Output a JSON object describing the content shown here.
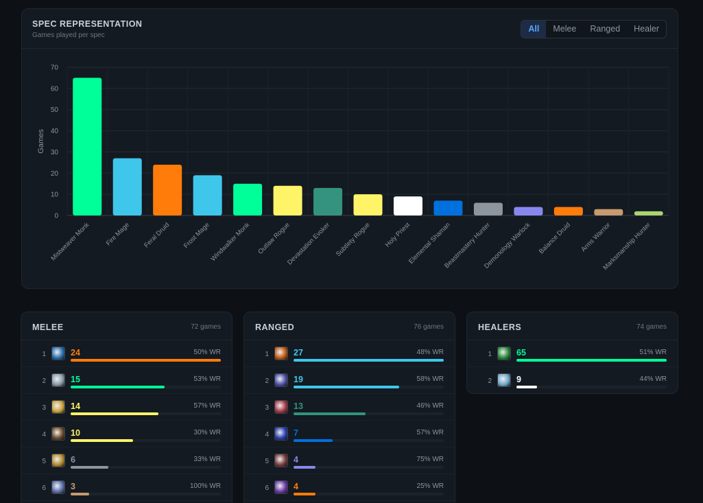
{
  "header": {
    "title": "SPEC REPRESENTATION",
    "subtitle": "Games played per spec",
    "filters": [
      "All",
      "Melee",
      "Ranged",
      "Healer"
    ],
    "active_filter": "All"
  },
  "chart_data": {
    "type": "bar",
    "title": "SPEC REPRESENTATION",
    "subtitle": "Games played per spec",
    "xlabel": "",
    "ylabel": "Games",
    "ylim": [
      0,
      70
    ],
    "yticks": [
      0,
      10,
      20,
      30,
      40,
      50,
      60,
      70
    ],
    "grid": true,
    "categories": [
      "Mistweaver Monk",
      "Fire Mage",
      "Feral Druid",
      "Frost Mage",
      "Windwalker Monk",
      "Outlaw Rogue",
      "Devastation Evoker",
      "Subtlety Rogue",
      "Holy Priest",
      "Elemental Shaman",
      "Beastmastery Hunter",
      "Demonology Warlock",
      "Balance Druid",
      "Arms Warrior",
      "Marksmanship Hunter"
    ],
    "values": [
      65,
      27,
      24,
      19,
      15,
      14,
      13,
      10,
      9,
      7,
      6,
      4,
      4,
      3,
      2
    ],
    "colors": [
      "#00ff98",
      "#3fc7eb",
      "#ff7c0a",
      "#3fc7eb",
      "#00ff98",
      "#fff468",
      "#33937f",
      "#fff468",
      "#ffffff",
      "#0070dd",
      "#8d959e",
      "#8788ee",
      "#ff7c0a",
      "#c69b6d",
      "#aad372"
    ]
  },
  "melee": {
    "title": "MELEE",
    "count_label": "72 games",
    "rows": [
      {
        "rank": "1",
        "count": "24",
        "wr": "50% WR",
        "fraction": 1.0,
        "color": "#ff7c0a",
        "icon": "feral-druid-icon",
        "icon_bg": "#2a6fb0"
      },
      {
        "rank": "2",
        "count": "15",
        "wr": "53% WR",
        "fraction": 0.625,
        "color": "#00ff98",
        "icon": "windwalker-monk-icon",
        "icon_bg": "#8a9aa8"
      },
      {
        "rank": "3",
        "count": "14",
        "wr": "57% WR",
        "fraction": 0.583,
        "color": "#fff468",
        "icon": "outlaw-rogue-icon",
        "icon_bg": "#c9a23a"
      },
      {
        "rank": "4",
        "count": "10",
        "wr": "30% WR",
        "fraction": 0.417,
        "color": "#fff468",
        "icon": "subtlety-rogue-icon",
        "icon_bg": "#6b4a2a"
      },
      {
        "rank": "5",
        "count": "6",
        "wr": "33% WR",
        "fraction": 0.25,
        "color": "#8d959e",
        "icon": "beastmastery-hunter-icon",
        "icon_bg": "#b38a2e"
      },
      {
        "rank": "6",
        "count": "3",
        "wr": "100% WR",
        "fraction": 0.125,
        "color": "#c69b6d",
        "icon": "arms-warrior-icon",
        "icon_bg": "#5a6fa8"
      }
    ]
  },
  "ranged": {
    "title": "RANGED",
    "count_label": "76 games",
    "rows": [
      {
        "rank": "1",
        "count": "27",
        "wr": "48% WR",
        "fraction": 1.0,
        "color": "#3fc7eb",
        "icon": "fire-mage-icon",
        "icon_bg": "#c25a12"
      },
      {
        "rank": "2",
        "count": "19",
        "wr": "58% WR",
        "fraction": 0.704,
        "color": "#3fc7eb",
        "icon": "frost-mage-icon",
        "icon_bg": "#4b4fa8"
      },
      {
        "rank": "3",
        "count": "13",
        "wr": "46% WR",
        "fraction": 0.481,
        "color": "#33937f",
        "icon": "devastation-evoker-icon",
        "icon_bg": "#a83a4a"
      },
      {
        "rank": "4",
        "count": "7",
        "wr": "57% WR",
        "fraction": 0.259,
        "color": "#0070dd",
        "icon": "elemental-shaman-icon",
        "icon_bg": "#2a3fb0"
      },
      {
        "rank": "5",
        "count": "4",
        "wr": "75% WR",
        "fraction": 0.148,
        "color": "#8788ee",
        "icon": "demonology-warlock-icon",
        "icon_bg": "#7a3a3a"
      },
      {
        "rank": "6",
        "count": "4",
        "wr": "25% WR",
        "fraction": 0.148,
        "color": "#ff7c0a",
        "icon": "balance-druid-icon",
        "icon_bg": "#6a3aa8"
      }
    ]
  },
  "healers": {
    "title": "HEALERS",
    "count_label": "74 games",
    "rows": [
      {
        "rank": "1",
        "count": "65",
        "wr": "51% WR",
        "fraction": 1.0,
        "color": "#00ff98",
        "icon": "mistweaver-monk-icon",
        "icon_bg": "#2a8a3a"
      },
      {
        "rank": "2",
        "count": "9",
        "wr": "44% WR",
        "fraction": 0.138,
        "color": "#ffffff",
        "icon": "holy-priest-icon",
        "icon_bg": "#6fa8c8"
      }
    ]
  }
}
